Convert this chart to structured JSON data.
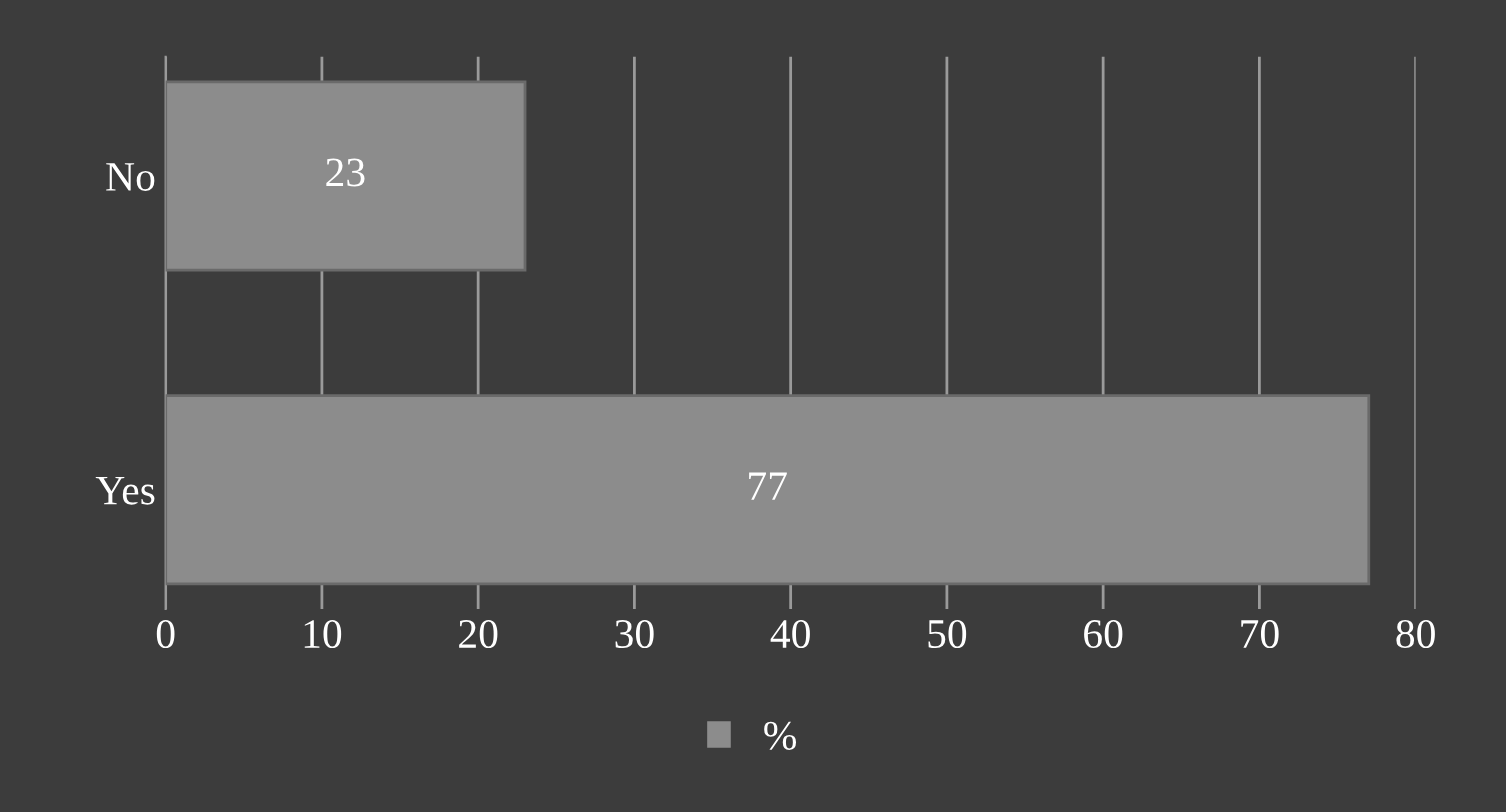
{
  "chart_data": {
    "type": "bar",
    "orientation": "horizontal",
    "categories": [
      "No",
      "Yes"
    ],
    "series": [
      {
        "name": "%",
        "color": "#8c8c8c",
        "values": [
          23,
          77
        ]
      }
    ],
    "xlim": [
      0,
      80
    ],
    "xticks": [
      0,
      10,
      20,
      30,
      40,
      50,
      60,
      70,
      80
    ],
    "grid": "x",
    "legend": "bottom",
    "data_labels": true
  }
}
